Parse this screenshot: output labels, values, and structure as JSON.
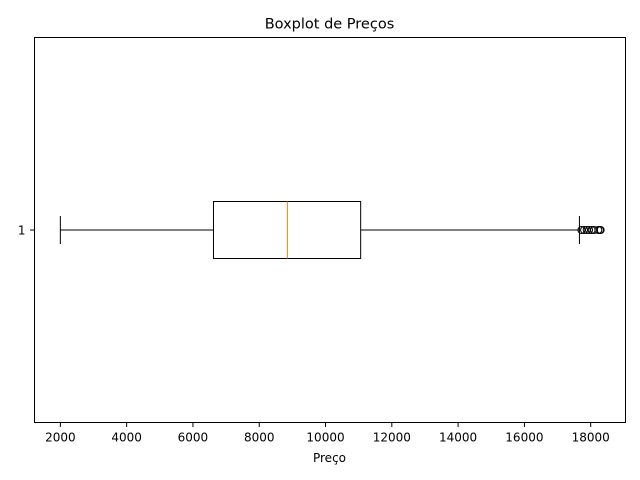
{
  "chart_data": {
    "type": "boxplot",
    "orientation": "horizontal",
    "title": "Boxplot de Preços",
    "xlabel": "Preço",
    "ylabel": "",
    "xlim": [
      1220,
      19050
    ],
    "xticks": [
      2000,
      4000,
      6000,
      8000,
      10000,
      12000,
      14000,
      16000,
      18000
    ],
    "yticks": [
      {
        "value": 1,
        "label": "1"
      }
    ],
    "grid": false,
    "boxes": [
      {
        "label": "1",
        "whisker_low": 2000,
        "q1": 6620,
        "median": 8850,
        "q3": 11060,
        "whisker_high": 17660,
        "outliers": [
          17720,
          17800,
          17880,
          17950,
          18030,
          18100,
          18230,
          18280,
          18300
        ]
      }
    ],
    "colors": {
      "box": "#000000",
      "median": "#ff7f0e",
      "whisker": "#000000",
      "flier": "#000000"
    }
  }
}
